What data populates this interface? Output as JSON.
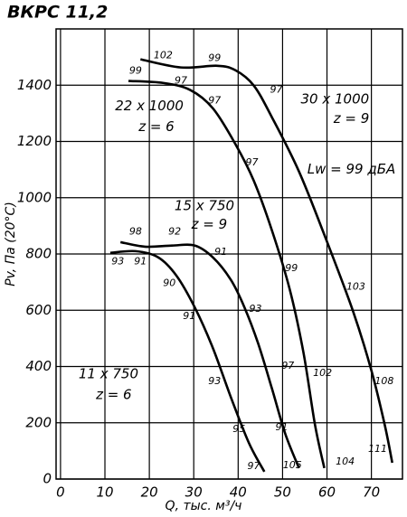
{
  "chart_data": {
    "type": "line",
    "title": "ВКРС 11,2",
    "x_label": "Q, тыс. м³/ч",
    "y_label": "Pv, Па (20°C)",
    "xlim": [
      -1,
      77
    ],
    "ylim": [
      0,
      1600
    ],
    "xticks": [
      0,
      10,
      20,
      30,
      40,
      50,
      60,
      70
    ],
    "yticks": [
      0,
      200,
      400,
      600,
      800,
      1000,
      1200,
      1400
    ],
    "grid": true,
    "series": [
      {
        "name": "30 x 1000",
        "color": "#000000",
        "x": [
          18,
          27.1,
          35.3,
          39.4,
          43.5,
          47.6,
          53.7,
          59.8,
          65.9,
          70,
          73,
          74.7
        ],
        "values": [
          1492,
          1463,
          1469,
          1453,
          1399,
          1286,
          1093,
          852,
          595,
          386,
          193,
          58
        ],
        "labels": [
          {
            "text": "102",
            "x": 23.1,
            "y": 1505
          },
          {
            "text": "99",
            "x": 34.7,
            "y": 1495
          },
          {
            "text": "97",
            "x": 48.6,
            "y": 1383
          },
          {
            "text": "99",
            "x": 52,
            "y": 749
          },
          {
            "text": "103",
            "x": 66.5,
            "y": 682
          },
          {
            "text": "108",
            "x": 72.9,
            "y": 347
          },
          {
            "text": "111",
            "x": 71.4,
            "y": 106
          }
        ]
      },
      {
        "name": "22 x 1000",
        "color": "#000000",
        "x": [
          15.3,
          23.1,
          29.2,
          34.3,
          39.4,
          43.5,
          47.6,
          51.6,
          54.7,
          57.3,
          59.4
        ],
        "values": [
          1415,
          1408,
          1383,
          1318,
          1190,
          1061,
          884,
          675,
          450,
          193,
          39
        ],
        "labels": [
          {
            "text": "99",
            "x": 16.9,
            "y": 1450
          },
          {
            "text": "97",
            "x": 27.1,
            "y": 1415
          },
          {
            "text": "97",
            "x": 34.7,
            "y": 1344
          },
          {
            "text": "97",
            "x": 43.1,
            "y": 1125
          },
          {
            "text": "97",
            "x": 51.2,
            "y": 402
          },
          {
            "text": "102",
            "x": 59,
            "y": 376
          },
          {
            "text": "104",
            "x": 64.1,
            "y": 61
          }
        ]
      },
      {
        "name": "15 x 750",
        "color": "#000000",
        "x": [
          13.5,
          19,
          25.1,
          30.2,
          34.3,
          38.4,
          41.4,
          44.5,
          47.6,
          50.6,
          53.7
        ],
        "values": [
          842,
          826,
          830,
          830,
          788,
          707,
          611,
          482,
          322,
          161,
          39
        ],
        "labels": [
          {
            "text": "98",
            "x": 16.9,
            "y": 878
          },
          {
            "text": "92",
            "x": 25.7,
            "y": 878
          },
          {
            "text": "91",
            "x": 36.1,
            "y": 807
          },
          {
            "text": "93",
            "x": 43.9,
            "y": 604
          },
          {
            "text": "91",
            "x": 49.8,
            "y": 183
          },
          {
            "text": "105",
            "x": 52.2,
            "y": 48
          }
        ]
      },
      {
        "name": "11 x 750",
        "color": "#000000",
        "x": [
          11.2,
          16.9,
          22,
          26.1,
          30.2,
          34.3,
          38.4,
          42.4,
          45.9
        ],
        "values": [
          804,
          810,
          788,
          723,
          611,
          466,
          289,
          129,
          26
        ],
        "labels": [
          {
            "text": "93",
            "x": 12.9,
            "y": 772
          },
          {
            "text": "91",
            "x": 18,
            "y": 772
          },
          {
            "text": "90",
            "x": 24.5,
            "y": 695
          },
          {
            "text": "91",
            "x": 29,
            "y": 579
          },
          {
            "text": "93",
            "x": 34.7,
            "y": 347
          },
          {
            "text": "95",
            "x": 40.2,
            "y": 177
          },
          {
            "text": "97",
            "x": 43.5,
            "y": 45
          }
        ]
      }
    ],
    "annotations": [
      {
        "text": "22 x 1000",
        "x": 20,
        "y": 1325
      },
      {
        "text": "z = 6",
        "x": 21.6,
        "y": 1251
      },
      {
        "text": "30 x 1000",
        "x": 61.8,
        "y": 1350
      },
      {
        "text": "z = 9",
        "x": 65.5,
        "y": 1280
      },
      {
        "text": "Lw = 99 дБА",
        "x": 65.5,
        "y": 1100
      },
      {
        "text": "15 x 750",
        "x": 32.4,
        "y": 971
      },
      {
        "text": "z = 9",
        "x": 33.5,
        "y": 904
      },
      {
        "text": "11 x 750",
        "x": 10.8,
        "y": 373
      },
      {
        "text": "z = 6",
        "x": 12,
        "y": 299
      }
    ]
  }
}
